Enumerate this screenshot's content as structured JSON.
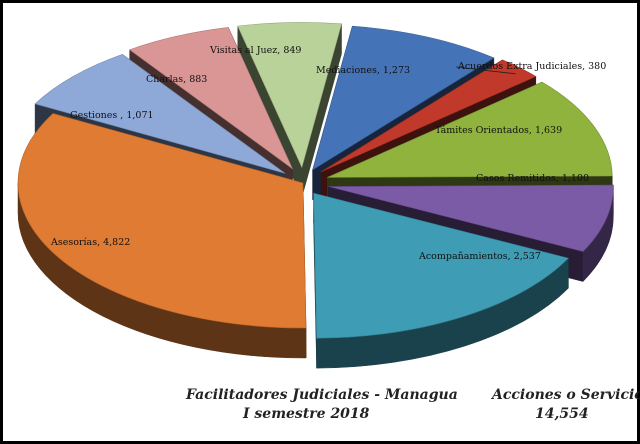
{
  "chart_data": {
    "type": "pie",
    "style": "3d-exploded",
    "slices": [
      {
        "label": "Mediaciones",
        "value": 1273,
        "display": "Mediaciones, 1,273",
        "color": "#4473b8"
      },
      {
        "label": "Acuerdos Extra Judiciales",
        "value": 380,
        "display": "Acuerdos Extra Judiciales, 380",
        "color": "#c0392b"
      },
      {
        "label": "Támites Orientados",
        "value": 1639,
        "display": "Támites Orientados, 1,639",
        "color": "#8fb33d"
      },
      {
        "label": "Casos Remitidos",
        "value": 1100,
        "display": "Casos Remitidos, 1,100",
        "color": "#7b5aa6"
      },
      {
        "label": "Acompañamientos",
        "value": 2537,
        "display": "Acompañamientos, 2,537",
        "color": "#3e9db5"
      },
      {
        "label": "Asesorías",
        "value": 4822,
        "display": "Asesorías, 4,822",
        "color": "#e07b34"
      },
      {
        "label": "Gestiones",
        "value": 1071,
        "display": "Gestiones , 1,071",
        "color": "#8ea9d8"
      },
      {
        "label": "Charlas",
        "value": 883,
        "display": "Charlas, 883",
        "color": "#d99694"
      },
      {
        "label": "Visitas al Juez",
        "value": 849,
        "display": "Visitas al Juez, 849",
        "color": "#b9d29a"
      }
    ]
  },
  "footer": {
    "line1_left": "Facilitadores Judiciales - Managua",
    "line2_left": "I semestre 2018",
    "line1_right": "Acciones o Servicios",
    "line2_right": "14,554"
  }
}
